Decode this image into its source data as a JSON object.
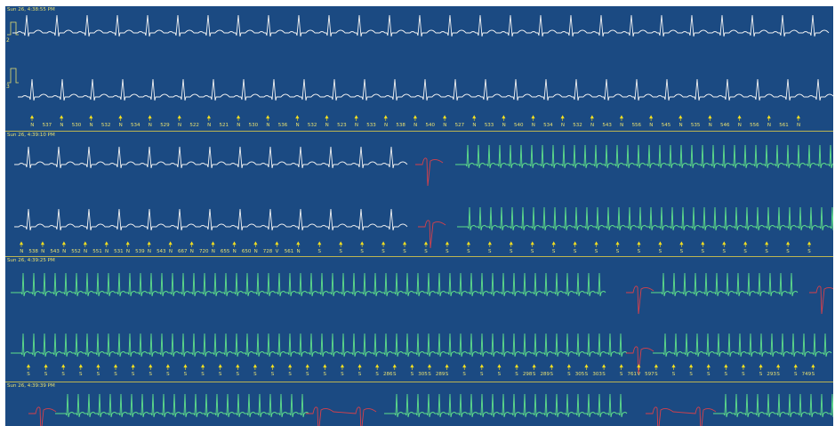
{
  "colors": {
    "background": "#1b4a82",
    "normal_trace": "#f2f2f2",
    "fast_trace": "#5fe08a",
    "ventricular_trace": "#d8404a",
    "annotation": "#e8e070",
    "marker": "#f5e020"
  },
  "icons": {
    "calibration": "calibration-pulse-icon",
    "beat_marker": "beat-marker-arrow-icon"
  },
  "strips": [
    {
      "timestamp": "Sun 26, 4:38:55 PM",
      "lead_labels": [
        "2",
        "3"
      ],
      "annotations": [
        {
          "label": "N",
          "value": "537"
        },
        {
          "label": "N",
          "value": "530"
        },
        {
          "label": "N",
          "value": "532"
        },
        {
          "label": "N",
          "value": "534"
        },
        {
          "label": "N",
          "value": "529"
        },
        {
          "label": "N",
          "value": "522"
        },
        {
          "label": "N",
          "value": "521"
        },
        {
          "label": "N",
          "value": "530"
        },
        {
          "label": "N",
          "value": "536"
        },
        {
          "label": "N",
          "value": "532"
        },
        {
          "label": "N",
          "value": "523"
        },
        {
          "label": "N",
          "value": "533"
        },
        {
          "label": "N",
          "value": "538"
        },
        {
          "label": "N",
          "value": "540"
        },
        {
          "label": "N",
          "value": "527"
        },
        {
          "label": "N",
          "value": "533"
        },
        {
          "label": "N",
          "value": "540"
        },
        {
          "label": "N",
          "value": "534"
        },
        {
          "label": "N",
          "value": "532"
        },
        {
          "label": "N",
          "value": "543"
        },
        {
          "label": "N",
          "value": "556"
        },
        {
          "label": "N",
          "value": "545"
        },
        {
          "label": "N",
          "value": "535"
        },
        {
          "label": "N",
          "value": "546"
        },
        {
          "label": "N",
          "value": "556"
        },
        {
          "label": "N",
          "value": "561"
        },
        {
          "label": "N",
          "value": ""
        }
      ]
    },
    {
      "timestamp": "Sun 26, 4:39:10 PM",
      "lead_labels": [],
      "annotations": [
        {
          "label": "N",
          "value": "538"
        },
        {
          "label": "N",
          "value": "543"
        },
        {
          "label": "N",
          "value": "552"
        },
        {
          "label": "N",
          "value": "551"
        },
        {
          "label": "N",
          "value": "531"
        },
        {
          "label": "N",
          "value": "539"
        },
        {
          "label": "N",
          "value": "543"
        },
        {
          "label": "N",
          "value": "667"
        },
        {
          "label": "N",
          "value": "720"
        },
        {
          "label": "N",
          "value": "655"
        },
        {
          "label": "N",
          "value": "650"
        },
        {
          "label": "N",
          "value": "728"
        },
        {
          "label": "V",
          "value": "561"
        },
        {
          "label": "N",
          "value": ""
        },
        {
          "label": "S",
          "value": ""
        },
        {
          "label": "S",
          "value": ""
        },
        {
          "label": "S",
          "value": ""
        },
        {
          "label": "S",
          "value": ""
        },
        {
          "label": "S",
          "value": ""
        },
        {
          "label": "S",
          "value": ""
        },
        {
          "label": "S",
          "value": ""
        },
        {
          "label": "S",
          "value": ""
        },
        {
          "label": "S",
          "value": ""
        },
        {
          "label": "S",
          "value": ""
        },
        {
          "label": "S",
          "value": ""
        },
        {
          "label": "S",
          "value": ""
        },
        {
          "label": "S",
          "value": ""
        },
        {
          "label": "S",
          "value": ""
        },
        {
          "label": "S",
          "value": ""
        },
        {
          "label": "S",
          "value": ""
        },
        {
          "label": "S",
          "value": ""
        },
        {
          "label": "S",
          "value": ""
        },
        {
          "label": "S",
          "value": ""
        },
        {
          "label": "S",
          "value": ""
        },
        {
          "label": "S",
          "value": ""
        },
        {
          "label": "S",
          "value": ""
        },
        {
          "label": "S",
          "value": ""
        },
        {
          "label": "S",
          "value": ""
        }
      ]
    },
    {
      "timestamp": "Sun 26, 4:39:25 PM",
      "lead_labels": [],
      "annotations": [
        {
          "label": "S",
          "value": ""
        },
        {
          "label": "S",
          "value": ""
        },
        {
          "label": "S",
          "value": ""
        },
        {
          "label": "S",
          "value": ""
        },
        {
          "label": "S",
          "value": ""
        },
        {
          "label": "S",
          "value": ""
        },
        {
          "label": "S",
          "value": ""
        },
        {
          "label": "S",
          "value": ""
        },
        {
          "label": "S",
          "value": ""
        },
        {
          "label": "S",
          "value": ""
        },
        {
          "label": "S",
          "value": ""
        },
        {
          "label": "S",
          "value": ""
        },
        {
          "label": "S",
          "value": ""
        },
        {
          "label": "S",
          "value": ""
        },
        {
          "label": "S",
          "value": ""
        },
        {
          "label": "S",
          "value": ""
        },
        {
          "label": "S",
          "value": ""
        },
        {
          "label": "S",
          "value": ""
        },
        {
          "label": "S",
          "value": ""
        },
        {
          "label": "S",
          "value": ""
        },
        {
          "label": "S",
          "value": "286"
        },
        {
          "label": "S",
          "value": ""
        },
        {
          "label": "S",
          "value": "305"
        },
        {
          "label": "S",
          "value": "289"
        },
        {
          "label": "S",
          "value": ""
        },
        {
          "label": "S",
          "value": ""
        },
        {
          "label": "S",
          "value": ""
        },
        {
          "label": "S",
          "value": ""
        },
        {
          "label": "S",
          "value": "298"
        },
        {
          "label": "S",
          "value": "289"
        },
        {
          "label": "S",
          "value": ""
        },
        {
          "label": "S",
          "value": "305"
        },
        {
          "label": "S",
          "value": "303"
        },
        {
          "label": "S",
          "value": ""
        },
        {
          "label": "S",
          "value": "761"
        },
        {
          "label": "V",
          "value": "597"
        },
        {
          "label": "S",
          "value": ""
        },
        {
          "label": "S",
          "value": ""
        },
        {
          "label": "S",
          "value": ""
        },
        {
          "label": "S",
          "value": ""
        },
        {
          "label": "S",
          "value": ""
        },
        {
          "label": "S",
          "value": ""
        },
        {
          "label": "S",
          "value": "293"
        },
        {
          "label": "S",
          "value": ""
        },
        {
          "label": "S",
          "value": "749"
        },
        {
          "label": "S",
          "value": ""
        }
      ]
    },
    {
      "timestamp": "Sun 26, 4:39:39 PM",
      "lead_labels": [],
      "annotations": []
    }
  ]
}
